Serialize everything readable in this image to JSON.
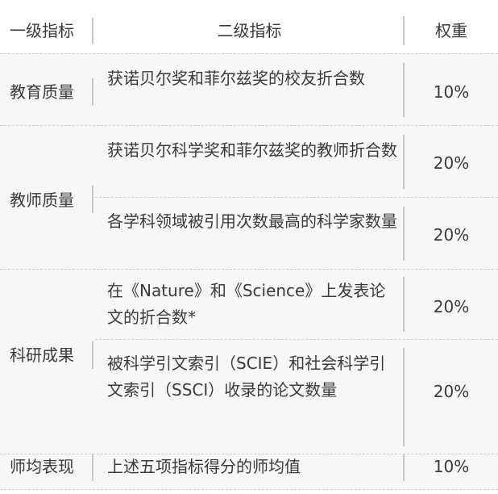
{
  "header": {
    "col1": "一级指标",
    "col2": "二级指标",
    "col3": "权重"
  },
  "rows": [
    {
      "level1": "教育质量",
      "items": [
        {
          "level2": "获诺贝尔奖和菲尔兹奖的校友折合数",
          "weight": "10%"
        }
      ]
    },
    {
      "level1": "教师质量",
      "items": [
        {
          "level2": "获诺贝尔科学奖和菲尔兹奖的教师折合数",
          "weight": "20%"
        },
        {
          "level2": "各学科领域被引用次数最高的科学家数量",
          "weight": "20%"
        }
      ]
    },
    {
      "level1": "科研成果",
      "items": [
        {
          "level2": "在《Nature》和《Science》上发表论文的折合数*",
          "weight": "20%"
        },
        {
          "level2": "被科学引文索引（SCIE）和社会科学引文索引（SSCI）收录的论文数量",
          "weight": "20%"
        }
      ]
    },
    {
      "level1": "师均表现",
      "items": [
        {
          "level2": "上述五项指标得分的师均值",
          "weight": "10%"
        }
      ]
    }
  ]
}
